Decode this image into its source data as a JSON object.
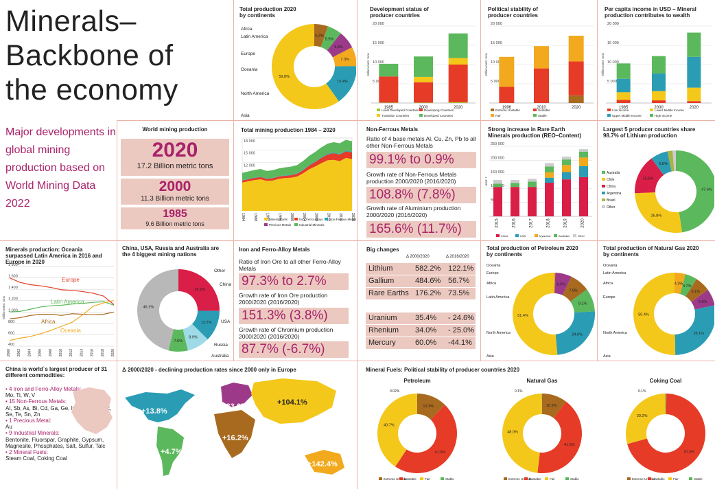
{
  "title": "Minerals– Backbone of the economy",
  "subtitle": "Major developments in global mining production based on World Mining Data 2022",
  "colors": {
    "accent": "#a8226a",
    "box": "#ecc9c0",
    "red": "#e63b27",
    "yellow": "#f4c81a",
    "green": "#5cb85c",
    "teal": "#2a9db5",
    "orange": "#f2a91e",
    "brown": "#a86a1f",
    "crimson": "#d91e48",
    "purple": "#9c3a89",
    "grey": "#b8b8b8"
  },
  "world_production": {
    "title": "World mining production",
    "rows": [
      {
        "year": "2020",
        "value": "17.2 Billion metric tons"
      },
      {
        "year": "2000",
        "value": "11.3 Billion metric tons"
      },
      {
        "year": "1985",
        "value": "9.6 Billion metric tons"
      }
    ]
  },
  "non_ferrous": {
    "title": "Non-Ferrous Metals",
    "stats": [
      {
        "label": "Ratio of 4 base metals Al, Cu, Zn, Pb to all other Non-Ferrous Metals",
        "value": "99.1% to 0.9%"
      },
      {
        "label": "Growth rate of Non-Ferrous Metals production 2000/2020 (2016/2020)",
        "value": "108.8% (7.8%)"
      },
      {
        "label": "Growth rate of Aluminium production 2000/2020 (2016/2020)",
        "value": "165.6% (11.7%)"
      }
    ]
  },
  "iron": {
    "title": "Iron and Ferro-Alloy Metals",
    "stats": [
      {
        "label": "Ratio of Iron Ore to all other Ferro-Alloy Metals",
        "value": "97.3% to 2.7%"
      },
      {
        "label": "Growth rate of Iron Ore production 2000/2020 (2016/2020)",
        "value": "151.3% (3.8%)"
      },
      {
        "label": "Growth rate of Chromium production 2000/2020 (2016/2020)",
        "value": "87.7% (-6.7%)"
      }
    ]
  },
  "big_changes": {
    "title": "Big changes",
    "col1": "Δ 2000/2020",
    "col2": "Δ 2016/2020",
    "rows": [
      {
        "name": "Lithium",
        "a": "582.2%",
        "b": "122.1%"
      },
      {
        "name": "Gallium",
        "a": "484.6%",
        "b": "56.7%"
      },
      {
        "name": "Rare Earths",
        "a": "176.2%",
        "b": "73.5%"
      },
      {
        "name": "Uranium",
        "a": "35.4%",
        "b": "- 24.6%"
      },
      {
        "name": "Rhenium",
        "a": "34.0%",
        "b": "- 25.0%"
      },
      {
        "name": "Mercury",
        "a": "60.0%",
        "b": "-44.1%"
      }
    ]
  },
  "china": {
    "title": "China is world`s largest producer of 31 different commodities:",
    "items": [
      {
        "head": "4 Iron and Ferro-Alloy Metals:",
        "body": "Mo, Ti, W, V"
      },
      {
        "head": "15 Non-Ferrous Metals:",
        "body": "Al, Sb, As, Bi, Cd, Ga, Ge, In, Pb, Hg, REE, Se, Te, Sn, Zn"
      },
      {
        "head": "1 Precious Metal:",
        "body": "Au"
      },
      {
        "head": "9 Industrial Minerals:",
        "body": "Bentonite, Fluorspar, Graphite, Gypsum, Magnesite, Phosphates, Salt, Sulfur, Talc"
      },
      {
        "head": "2 Mineral Fuels:",
        "body": "Steam Coal, Coking Coal"
      }
    ]
  },
  "map": {
    "title": "Δ 2000/2020 - declining production rates since 2000 only in Europe",
    "labels": [
      "+13.8%",
      "-33.0%",
      "+104.1%",
      "+16.2%",
      "+4.7%",
      "+142.4%"
    ]
  },
  "chart_data": [
    {
      "id": "continents",
      "type": "pie",
      "title": "Total production 2020 by continents",
      "labels": [
        "Africa",
        "Latin America",
        "Europe",
        "Oceania",
        "North America",
        "Asia"
      ],
      "values": [
        5.2,
        5.5,
        6.8,
        7.3,
        15.4,
        59.8
      ],
      "value_labels": [
        "5.2%",
        "5.5%",
        "6.8%",
        "7.3%",
        "15.4%",
        "59.8%"
      ],
      "colors": [
        "#a86a1f",
        "#5cb85c",
        "#9c3a89",
        "#f2a91e",
        "#2a9db5",
        "#f4c81a"
      ]
    },
    {
      "id": "development",
      "type": "bar",
      "title": "Development status of producer countries",
      "categories": [
        "1985",
        "2000",
        "2020"
      ],
      "ylim": [
        0,
        20000
      ],
      "yticks": [
        "5 000",
        "10 000",
        "15 000",
        "20 000"
      ],
      "ylabel": "Million metr. tons",
      "series": [
        {
          "name": "Least Developed Countries",
          "color": "#9acd32",
          "values": [
            100,
            100,
            200
          ]
        },
        {
          "name": "Developing Countries",
          "color": "#e63b27",
          "values": [
            6800,
            5300,
            9800
          ]
        },
        {
          "name": "Transition Countries",
          "color": "#f4c81a",
          "values": [
            0,
            1400,
            1700
          ]
        },
        {
          "name": "Developed Countries",
          "color": "#5cb85c",
          "values": [
            3300,
            5300,
            6400
          ]
        }
      ]
    },
    {
      "id": "political",
      "type": "bar",
      "title": "Political stability of producer countries",
      "categories": [
        "1996",
        "2010",
        "2020"
      ],
      "ylim": [
        0,
        20000
      ],
      "yticks": [
        "5 000",
        "10 000",
        "15 000",
        "20 000"
      ],
      "ylabel": "Million metr. tons",
      "series": [
        {
          "name": "Extreme Unstable",
          "color": "#a86a1f",
          "values": [
            0,
            0,
            2000
          ]
        },
        {
          "name": "Unstable",
          "color": "#e63b27",
          "values": [
            4200,
            9000,
            8800
          ]
        },
        {
          "name": "Fair",
          "color": "#f2a91e",
          "values": [
            7800,
            5800,
            6700
          ]
        },
        {
          "name": "Stable",
          "color": "#5cb85c",
          "values": [
            0,
            0,
            0
          ]
        }
      ]
    },
    {
      "id": "income",
      "type": "bar",
      "title": "Per capita income in USD – Mineral production contributes to wealth",
      "categories": [
        "1985",
        "2000",
        "2020"
      ],
      "ylim": [
        0,
        20000
      ],
      "yticks": [
        "5 000",
        "10 000",
        "15 000",
        "20 000"
      ],
      "ylabel": "Million metr. tons",
      "series": [
        {
          "name": "Low Income",
          "color": "#e63b27",
          "values": [
            800,
            700,
            500
          ]
        },
        {
          "name": "Lower Middle Income",
          "color": "#f4c81a",
          "values": [
            2000,
            2400,
            3500
          ]
        },
        {
          "name": "Upper Middle Income",
          "color": "#2a9db5",
          "values": [
            3500,
            4600,
            8000
          ]
        },
        {
          "name": "High Income",
          "color": "#5cb85c",
          "values": [
            4000,
            4500,
            6300
          ]
        }
      ]
    },
    {
      "id": "total_mining",
      "type": "area",
      "title": "Total mining production 1984 – 2020",
      "x": [
        1984,
        1986,
        1988,
        1990,
        1992,
        1994,
        1996,
        1998,
        2000,
        2002,
        2004,
        2006,
        2008,
        2010,
        2012,
        2014,
        2016,
        2018,
        2020
      ],
      "ylim": [
        0,
        18000
      ],
      "yticks": [
        "3 000",
        "6 000",
        "9 000",
        "12 000",
        "15 000",
        "18 000"
      ],
      "ylabel": "Million metr. tons",
      "xticks": [
        "1984",
        "1988",
        "1992",
        "1996",
        "2000",
        "2004",
        "2008",
        "2012",
        "2016",
        "2020"
      ],
      "series": [
        {
          "name": "Mineral Fuels",
          "color": "#f4c81a",
          "values": [
            7000,
            7300,
            7600,
            7800,
            7400,
            7500,
            7900,
            8100,
            8200,
            8500,
            9300,
            10300,
            11000,
            11800,
            12500,
            12600,
            12300,
            13100,
            12800
          ]
        },
        {
          "name": "Iron, Ferro-Alloys",
          "color": "#e63b27",
          "values": [
            500,
            520,
            540,
            560,
            520,
            540,
            580,
            570,
            600,
            640,
            760,
            930,
            1100,
            1300,
            1450,
            1650,
            1600,
            1620,
            1650
          ]
        },
        {
          "name": "Non-Ferrous Metals",
          "color": "#2a9db5",
          "values": [
            80,
            85,
            90,
            95,
            95,
            100,
            105,
            110,
            115,
            120,
            130,
            140,
            150,
            160,
            170,
            180,
            185,
            190,
            195
          ]
        },
        {
          "name": "Precious Metals",
          "color": "#9c3a89",
          "values": [
            10,
            10,
            10,
            10,
            10,
            10,
            10,
            10,
            10,
            10,
            10,
            10,
            10,
            10,
            10,
            10,
            10,
            10,
            10
          ]
        },
        {
          "name": "Industrial Minerals",
          "color": "#5cb85c",
          "values": [
            1800,
            1820,
            1850,
            1900,
            1850,
            1880,
            1900,
            1950,
            2000,
            2050,
            2150,
            2250,
            2350,
            2450,
            2500,
            2550,
            2600,
            2650,
            2550
          ]
        }
      ]
    },
    {
      "id": "rare_earth",
      "type": "bar",
      "title": "Strong increase in Rare Earth Minerals production (REO–Content)",
      "categories": [
        "2015",
        "2016",
        "2017",
        "2018",
        "2019",
        "2020"
      ],
      "ylim": [
        0,
        250000
      ],
      "yticks": [
        "50 000",
        "100 000",
        "150 000",
        "200 000",
        "250 000"
      ],
      "ylabel": "metr. t",
      "series": [
        {
          "name": "China",
          "color": "#d91e48",
          "values": [
            105000,
            105000,
            105000,
            120000,
            132000,
            140000
          ]
        },
        {
          "name": "USA",
          "color": "#2a9db5",
          "values": [
            0,
            0,
            0,
            18000,
            26000,
            39000
          ]
        },
        {
          "name": "Myanmar",
          "color": "#f2a91e",
          "values": [
            0,
            0,
            0,
            19000,
            25000,
            31000
          ]
        },
        {
          "name": "Australia",
          "color": "#5cb85c",
          "values": [
            12000,
            14000,
            19000,
            21000,
            20000,
            21000
          ]
        },
        {
          "name": "Other",
          "color": "#cccccc",
          "values": [
            13000,
            11000,
            10000,
            12000,
            10000,
            9000
          ]
        }
      ]
    },
    {
      "id": "lithium",
      "type": "pie",
      "title": "Largest 5 producer countries share 98.7% of Lithium production",
      "labels": [
        "Australia",
        "Chile",
        "China",
        "Argentina",
        "Brazil",
        "Other"
      ],
      "values": [
        47.6,
        26.8,
        15.5,
        6.8,
        2.0,
        1.3
      ],
      "value_labels": [
        "47.6%",
        "26.8%",
        "15.5%",
        "6.8%",
        "2.0%",
        "1.3%"
      ],
      "colors": [
        "#5cb85c",
        "#f4c81a",
        "#d91e48",
        "#2a9db5",
        "#a8b545",
        "#cccccc"
      ]
    },
    {
      "id": "oceania",
      "type": "line",
      "title": "Minerals production: Oceania surpassed Latin America in 2016 and Europe in 2020",
      "x": [
        2000,
        2002,
        2004,
        2006,
        2008,
        2010,
        2012,
        2014,
        2016,
        2018,
        2020
      ],
      "ylim": [
        400,
        1800
      ],
      "yticks": [
        "400",
        "600",
        "800",
        "1 000",
        "1 200",
        "1 400",
        "1 600",
        "1 800"
      ],
      "ylabel": "Million metr. tons",
      "xticks": [
        "2000",
        "2002",
        "2004",
        "2006",
        "2008",
        "2010",
        "2012",
        "2014",
        "2016",
        "2018",
        "2020"
      ],
      "series": [
        {
          "name": "Europe",
          "color": "#e63b27",
          "values": [
            1600,
            1520,
            1480,
            1460,
            1430,
            1390,
            1380,
            1360,
            1330,
            1280,
            1130
          ]
        },
        {
          "name": "Latin America",
          "color": "#5cb85c",
          "values": [
            1000,
            1010,
            1050,
            1090,
            1110,
            1120,
            1140,
            1150,
            1170,
            1180,
            1120
          ]
        },
        {
          "name": "Africa",
          "color": "#a86a1f",
          "values": [
            880,
            900,
            940,
            960,
            960,
            940,
            970,
            960,
            950,
            960,
            1000
          ]
        },
        {
          "name": "Oceania",
          "color": "#f2a91e",
          "values": [
            500,
            540,
            570,
            620,
            680,
            750,
            820,
            950,
            1100,
            1160,
            1200
          ]
        }
      ]
    },
    {
      "id": "big4",
      "type": "pie",
      "title": "China, USA, Russia and Australia are the 4 biggest mining nations",
      "labels": [
        "China",
        "USA",
        "Russia",
        "Australia",
        "Other"
      ],
      "values": [
        25.2,
        12.2,
        8.9,
        7.6,
        46.1
      ],
      "value_labels": [
        "25.2%",
        "12.2%",
        "8.9%",
        "7.6%",
        "46.1%"
      ],
      "colors": [
        "#d91e48",
        "#2a9db5",
        "#9edbe6",
        "#5cb85c",
        "#b8b8b8"
      ]
    },
    {
      "id": "petroleum_cont",
      "type": "pie",
      "title": "Total production of Petroleum 2020 by continents",
      "labels": [
        "Oceania",
        "Europe",
        "Africa",
        "Latin America",
        "North America",
        "Asia"
      ],
      "values": [
        0.6,
        6.5,
        7.8,
        9.1,
        24.6,
        51.4
      ],
      "value_labels": [
        "0.6%",
        "6.5%",
        "7.8%",
        "9.1%",
        "24.6%",
        "51.4%"
      ],
      "colors": [
        "#f2a91e",
        "#9c3a89",
        "#a86a1f",
        "#5cb85c",
        "#2a9db5",
        "#f4c81a"
      ]
    },
    {
      "id": "gas_cont",
      "type": "pie",
      "title": "Total production of Natural Gas 2020 by continents",
      "labels": [
        "Oceania",
        "Latin America",
        "Africa",
        "Europe",
        "North America",
        "Asia"
      ],
      "values": [
        4.3,
        4.7,
        6.1,
        6.6,
        28.1,
        50.4
      ],
      "value_labels": [
        "4.3%",
        "4.7%",
        "6.1%",
        "6.6%",
        "28.1%",
        "50.4%"
      ],
      "colors": [
        "#f2a91e",
        "#5cb85c",
        "#a86a1f",
        "#9c3a89",
        "#2a9db5",
        "#f4c81a"
      ]
    },
    {
      "id": "fuels_petroleum",
      "type": "pie",
      "title": "Petroleum",
      "labels": [
        "Extreme Unstable",
        "Unstable",
        "Fair",
        "Stable"
      ],
      "values": [
        12.3,
        47.0,
        40.7,
        0.02
      ],
      "value_labels": [
        "12.3%",
        "47.0%",
        "40.7%",
        "0.02%"
      ],
      "colors": [
        "#a86a1f",
        "#e63b27",
        "#f4c81a",
        "#5cb85c"
      ]
    },
    {
      "id": "fuels_gas",
      "type": "pie",
      "title": "Natural Gas",
      "labels": [
        "Extreme Unstable",
        "Unstable",
        "Fair",
        "Stable"
      ],
      "values": [
        10.3,
        41.5,
        48.0,
        0.1
      ],
      "value_labels": [
        "10.3%",
        "41.5%",
        "48.0%",
        "0.1%"
      ],
      "colors": [
        "#a86a1f",
        "#e63b27",
        "#f4c81a",
        "#5cb85c"
      ]
    },
    {
      "id": "fuels_coal",
      "type": "pie",
      "title": "Coking Coal",
      "labels": [
        "Extreme Unstable",
        "Unstable",
        "Fair",
        "Stable"
      ],
      "values": [
        0.4,
        70.3,
        29.2,
        0.1
      ],
      "value_labels": [
        "0.4%",
        "70.3%",
        "29.2%",
        "0.1%"
      ],
      "colors": [
        "#a86a1f",
        "#e63b27",
        "#f4c81a",
        "#5cb85c"
      ]
    }
  ],
  "fuels_title": "Mineral Fuels: Political stability of producer countries 2020"
}
